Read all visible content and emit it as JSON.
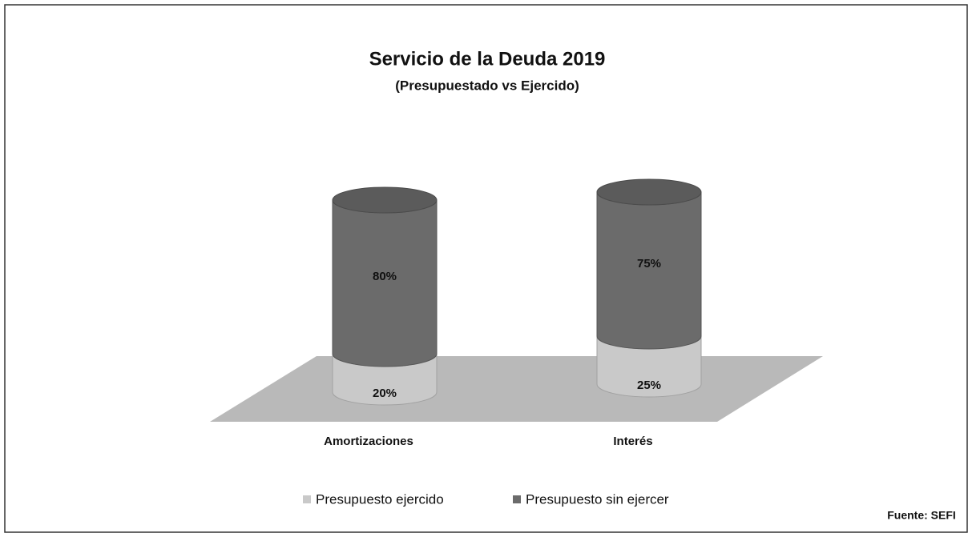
{
  "chart_data": {
    "type": "bar3d-cylinder-stacked",
    "title": "Servicio de la Deuda 2019",
    "subtitle": "(Presupuestado vs Ejercido)",
    "categories": [
      "Amortizaciones",
      "Interés"
    ],
    "series": [
      {
        "name": "Presupuesto ejercido",
        "color": "#c9c9c9",
        "values": [
          20,
          25
        ],
        "value_labels": [
          "20%",
          "25%"
        ]
      },
      {
        "name": "Presupuesto sin ejercer",
        "color": "#6b6b6b",
        "values": [
          80,
          75
        ],
        "value_labels": [
          "80%",
          "75%"
        ]
      }
    ],
    "legend": "bottom",
    "source": "Fuente: SEFI"
  }
}
